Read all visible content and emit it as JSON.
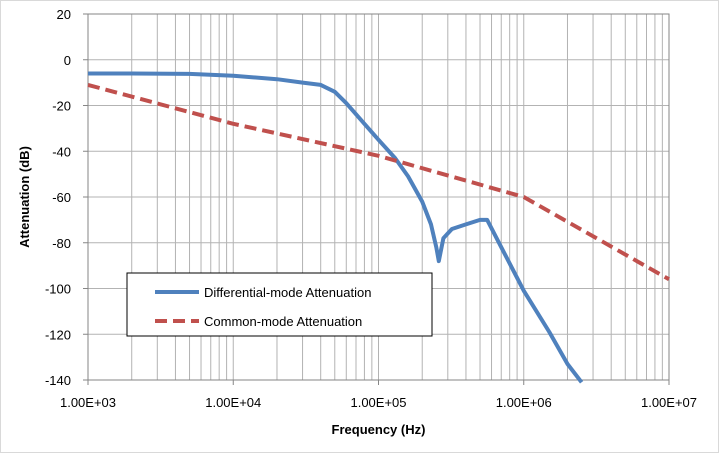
{
  "chart_data": {
    "type": "line",
    "title": "",
    "xlabel": "Frequency (Hz)",
    "ylabel": "Attenuation (dB)",
    "x_scale": "log",
    "xlim": [
      1000,
      10000000
    ],
    "ylim": [
      -140,
      20
    ],
    "x_ticks": [
      1000,
      10000,
      100000,
      1000000,
      10000000
    ],
    "x_tick_labels": [
      "1.00E+03",
      "1.00E+04",
      "1.00E+05",
      "1.00E+06",
      "1.00E+07"
    ],
    "y_ticks": [
      20,
      0,
      -20,
      -40,
      -60,
      -80,
      -100,
      -120,
      -140
    ],
    "y_tick_labels": [
      "20",
      "0",
      "-20",
      "-40",
      "-60",
      "-80",
      "-100",
      "-120",
      "-140"
    ],
    "grid": true,
    "legend_position": "lower-left",
    "series": [
      {
        "name": "Differential-mode Attenuation",
        "color": "#4F81BD",
        "style": "solid",
        "x": [
          1000,
          2000,
          5000,
          10000,
          20000,
          30000,
          40000,
          50000,
          60000,
          80000,
          100000,
          130000,
          160000,
          200000,
          230000,
          250000,
          260000,
          280000,
          320000,
          400000,
          500000,
          560000,
          700000,
          1000000,
          1500000,
          2000000,
          2500000
        ],
        "y": [
          -6,
          -6,
          -6.2,
          -7,
          -8.5,
          -10,
          -11,
          -14,
          -19,
          -28,
          -35,
          -43,
          -51,
          -62,
          -72,
          -82,
          -88,
          -78,
          -74,
          -72,
          -70,
          -70,
          -82,
          -101,
          -119,
          -133,
          -141
        ]
      },
      {
        "name": "Common-mode Attenuation",
        "color": "#C0504D",
        "style": "dashed",
        "x": [
          1000,
          10000,
          100000,
          1000000,
          10000000
        ],
        "y": [
          -11,
          -28,
          -42,
          -60,
          -96
        ]
      }
    ]
  }
}
